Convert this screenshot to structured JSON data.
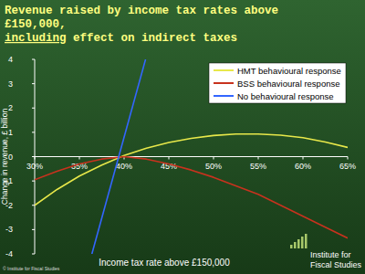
{
  "chart_data": {
    "type": "line",
    "title": "Revenue raised by income tax rates above £150,000, including effect on indirect taxes",
    "x_label": "Income tax rate above £150,000",
    "y_label": "Change in revenue, £ billion",
    "xlim": [
      30,
      65
    ],
    "xticks": [
      {
        "value": 30,
        "label": "30%"
      },
      {
        "value": 35,
        "label": "35%"
      },
      {
        "value": 40,
        "label": "40%"
      },
      {
        "value": 45,
        "label": "45%"
      },
      {
        "value": 50,
        "label": "50%"
      },
      {
        "value": 55,
        "label": "55%"
      },
      {
        "value": 60,
        "label": "60%"
      },
      {
        "value": 65,
        "label": "65%"
      }
    ],
    "ylim": [
      -4,
      4
    ],
    "yticks": [
      -4,
      -3,
      -2,
      -1,
      0,
      1,
      2,
      3,
      4
    ],
    "grid": false,
    "legend": "upper right",
    "series": [
      {
        "name": "HMT behavioural response",
        "color": "#e8e84a",
        "x": [
          30,
          32.5,
          35,
          37.5,
          40,
          42.5,
          45,
          47.5,
          50,
          52.5,
          55,
          57.5,
          60,
          62.5,
          65
        ],
        "values": [
          -2.0,
          -1.35,
          -0.8,
          -0.35,
          0.05,
          0.35,
          0.58,
          0.75,
          0.87,
          0.93,
          0.93,
          0.88,
          0.78,
          0.6,
          0.38
        ]
      },
      {
        "name": "BSS behavioural response",
        "color": "#c8321e",
        "x": [
          30,
          32.5,
          35,
          37.5,
          40,
          42.5,
          45,
          47.5,
          50,
          52.5,
          55,
          57.5,
          60,
          62.5,
          65
        ],
        "values": [
          -0.95,
          -0.6,
          -0.3,
          -0.1,
          0.0,
          -0.1,
          -0.3,
          -0.55,
          -0.85,
          -1.2,
          -1.55,
          -2.0,
          -2.45,
          -2.9,
          -3.35
        ]
      },
      {
        "name": "No behavioural response",
        "color": "#3366ff",
        "x": [
          36.4,
          42.4
        ],
        "values": [
          -4,
          4
        ]
      }
    ],
    "annotations": [
      "© Institute for Fiscal Studies",
      "Institute for Fiscal Studies"
    ]
  }
}
